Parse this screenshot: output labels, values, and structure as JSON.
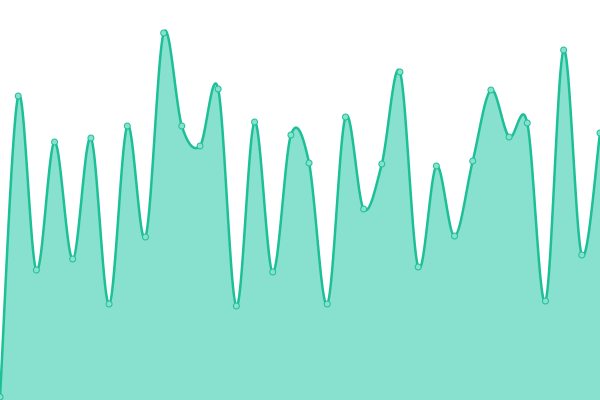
{
  "chart_data": {
    "type": "area",
    "values": [
      3,
      304,
      130,
      258,
      141,
      262,
      96,
      274,
      163,
      367,
      274,
      254,
      311,
      94,
      278,
      128,
      265,
      237,
      96,
      283,
      191,
      236,
      328,
      133,
      234,
      164,
      239,
      310,
      263,
      277,
      99,
      350,
      145,
      267
    ],
    "color": "#1dbf96",
    "fill": "#88e0cf",
    "ylim": [
      0,
      400
    ]
  }
}
